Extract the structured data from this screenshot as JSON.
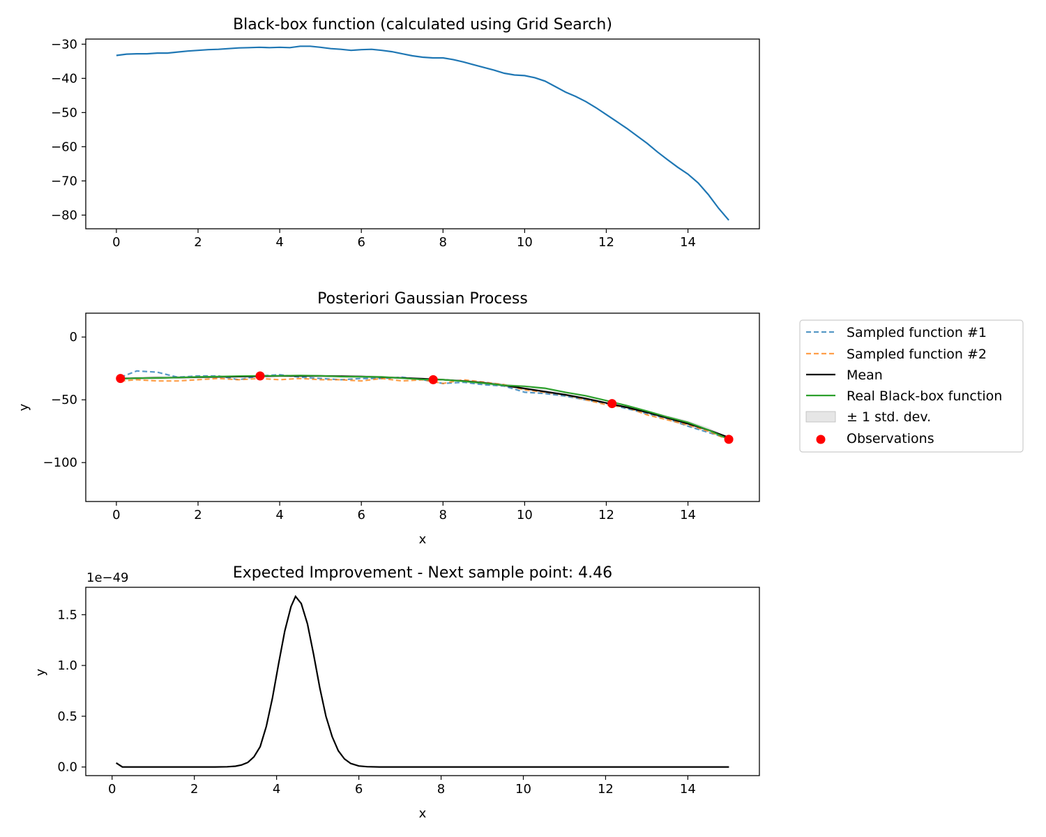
{
  "chart_data": [
    {
      "type": "line",
      "title": "Black-box function (calculated using Grid Search)",
      "xlabel": "",
      "ylabel": "",
      "xlim": [
        -0.75,
        15.75
      ],
      "ylim": [
        -84.0,
        -28.5
      ],
      "xticks": [
        0,
        2,
        4,
        6,
        8,
        10,
        12,
        14
      ],
      "yticks": [
        -30,
        -40,
        -50,
        -60,
        -70,
        -80
      ],
      "grid": false,
      "colors": {
        "line": "#1f77b4"
      },
      "series": [
        {
          "x": [
            0,
            0.25,
            0.5,
            0.75,
            1,
            1.25,
            1.5,
            1.75,
            2,
            2.25,
            2.5,
            2.75,
            3,
            3.25,
            3.5,
            3.75,
            4,
            4.25,
            4.5,
            4.75,
            5,
            5.25,
            5.5,
            5.75,
            6,
            6.25,
            6.5,
            6.75,
            7,
            7.25,
            7.5,
            7.75,
            8,
            8.25,
            8.5,
            8.75,
            9,
            9.25,
            9.5,
            9.75,
            10,
            10.25,
            10.5,
            10.75,
            11,
            11.25,
            11.5,
            11.75,
            12,
            12.25,
            12.5,
            12.75,
            13,
            13.25,
            13.5,
            13.75,
            14,
            14.25,
            14.5,
            14.75,
            15
          ],
          "y": [
            -33.3,
            -32.9,
            -32.8,
            -32.8,
            -32.6,
            -32.6,
            -32.3,
            -32.0,
            -31.8,
            -31.6,
            -31.5,
            -31.3,
            -31.1,
            -31.0,
            -30.9,
            -31.0,
            -30.9,
            -31.0,
            -30.6,
            -30.6,
            -30.9,
            -31.3,
            -31.5,
            -31.8,
            -31.6,
            -31.5,
            -31.8,
            -32.2,
            -32.8,
            -33.4,
            -33.8,
            -34.0,
            -34.0,
            -34.5,
            -35.2,
            -36.0,
            -36.8,
            -37.6,
            -38.5,
            -39.0,
            -39.2,
            -39.8,
            -40.8,
            -42.4,
            -44.0,
            -45.3,
            -46.8,
            -48.6,
            -50.6,
            -52.6,
            -54.6,
            -56.8,
            -59.0,
            -61.5,
            -63.8,
            -66.0,
            -68.0,
            -70.6,
            -74.0,
            -78.0,
            -81.5
          ]
        }
      ]
    },
    {
      "type": "line",
      "title": "Posteriori Gaussian Process",
      "xlabel": "x",
      "ylabel": "y",
      "xlim": [
        -0.75,
        15.75
      ],
      "ylim": [
        -131,
        19
      ],
      "xticks": [
        0,
        2,
        4,
        6,
        8,
        10,
        12,
        14
      ],
      "yticks": [
        0,
        -50,
        -100
      ],
      "grid": false,
      "legend_position": "outside-right",
      "x": [
        0.1,
        0.5,
        1,
        1.5,
        2,
        2.5,
        3,
        3.5,
        4,
        4.5,
        5,
        5.5,
        6,
        6.5,
        7,
        7.5,
        8,
        8.5,
        9,
        9.5,
        10,
        10.5,
        11,
        11.5,
        12,
        12.5,
        13,
        13.5,
        14,
        14.5,
        15
      ],
      "series": [
        {
          "name": "Sampled function #1",
          "color": "#1f77b4",
          "style": "dashed",
          "y": [
            -32,
            -27,
            -28,
            -32,
            -31,
            -31,
            -34,
            -31,
            -30,
            -32,
            -33,
            -34,
            -33,
            -33,
            -32,
            -34,
            -37,
            -36,
            -38,
            -39,
            -44,
            -45,
            -47,
            -50,
            -53,
            -57,
            -61,
            -65,
            -71,
            -76,
            -81
          ]
        },
        {
          "name": "Sampled function #2",
          "color": "#ff7f0e",
          "style": "dashed",
          "y": [
            -35,
            -34,
            -35,
            -35,
            -34,
            -33,
            -34,
            -33,
            -34,
            -33,
            -34,
            -34,
            -35,
            -33,
            -35,
            -34,
            -37,
            -34,
            -36,
            -38,
            -42,
            -44,
            -46,
            -50,
            -54,
            -56,
            -62,
            -66,
            -70,
            -75,
            -82
          ]
        },
        {
          "name": "Mean",
          "color": "#000000",
          "style": "solid",
          "y": [
            -33,
            -32.8,
            -32.5,
            -32.3,
            -32,
            -31.8,
            -31.5,
            -31.3,
            -31,
            -31,
            -31,
            -31.2,
            -31.5,
            -32,
            -32.6,
            -33.2,
            -34,
            -35,
            -36.5,
            -38.5,
            -41,
            -43.5,
            -46,
            -49,
            -52.5,
            -56,
            -60,
            -64.5,
            -69,
            -74,
            -80
          ]
        },
        {
          "name": "Real Black-box function",
          "color": "#2ca02c",
          "style": "solid",
          "y": [
            -33.3,
            -32.8,
            -32.6,
            -32.3,
            -31.8,
            -31.5,
            -31.1,
            -30.9,
            -30.9,
            -30.6,
            -30.9,
            -31.5,
            -31.6,
            -31.8,
            -32.8,
            -33.8,
            -34.0,
            -35.2,
            -36.8,
            -38.5,
            -39.2,
            -40.8,
            -44.0,
            -46.8,
            -50.6,
            -54.6,
            -59.0,
            -63.8,
            -68.0,
            -74.0,
            -81.5
          ]
        }
      ],
      "band": {
        "name": "± 1 std. dev.",
        "color": "#e6e6e6",
        "lower": [
          -33,
          -34,
          -34,
          -33.5,
          -33,
          -32.5,
          -32,
          -31.3,
          -32,
          -32,
          -32,
          -32.5,
          -33,
          -33,
          -33.5,
          -34,
          -34,
          -36,
          -38,
          -40,
          -43,
          -45.5,
          -48,
          -51,
          -53,
          -57,
          -61.5,
          -66.5,
          -71.5,
          -76,
          -80
        ],
        "upper": [
          -33,
          -31.5,
          -31,
          -31,
          -31,
          -31,
          -31,
          -31.3,
          -30,
          -30,
          -30,
          -30,
          -30,
          -31,
          -31.7,
          -32.4,
          -34,
          -34,
          -35,
          -37,
          -39,
          -41.5,
          -44,
          -47,
          -52,
          -55,
          -58.5,
          -62.5,
          -66.5,
          -72,
          -80
        ]
      },
      "observations": {
        "name": "Observations",
        "color": "#ff0000",
        "x": [
          0.1,
          3.52,
          7.76,
          12.14,
          15.0
        ],
        "y": [
          -33.0,
          -31.0,
          -34.0,
          -53.0,
          -81.5
        ]
      }
    },
    {
      "type": "line",
      "title": "Expected Improvement - Next sample point: 4.46",
      "xlabel": "x",
      "ylabel": "y",
      "offset_text": "1e−49",
      "xlim": [
        -0.64,
        15.74
      ],
      "ylim": [
        -0.085,
        1.77
      ],
      "xticks": [
        0,
        2,
        4,
        6,
        8,
        10,
        12,
        14
      ],
      "yticks": [
        0.0,
        0.5,
        1.0,
        1.5
      ],
      "ytick_labels": [
        "0.0",
        "0.5",
        "1.0",
        "1.5"
      ],
      "grid": false,
      "colors": {
        "line": "#000000"
      },
      "series": [
        {
          "x": [
            0.1,
            0.25,
            0.5,
            1,
            1.5,
            2,
            2.5,
            2.8,
            3.0,
            3.15,
            3.3,
            3.45,
            3.6,
            3.75,
            3.9,
            4.05,
            4.2,
            4.35,
            4.46,
            4.6,
            4.75,
            4.9,
            5.05,
            5.2,
            5.35,
            5.5,
            5.65,
            5.8,
            6.0,
            6.2,
            6.5,
            7,
            8,
            10,
            12,
            14,
            15
          ],
          "y": [
            0.04,
            0.0,
            0.0,
            0.0,
            0.0,
            0.0,
            0.0,
            0.002,
            0.008,
            0.02,
            0.045,
            0.1,
            0.2,
            0.4,
            0.68,
            1.02,
            1.34,
            1.58,
            1.68,
            1.61,
            1.41,
            1.11,
            0.78,
            0.5,
            0.3,
            0.16,
            0.08,
            0.035,
            0.01,
            0.003,
            0.0,
            0.0,
            0.0,
            0.0,
            0.0,
            0.0,
            0.0
          ]
        }
      ]
    }
  ]
}
